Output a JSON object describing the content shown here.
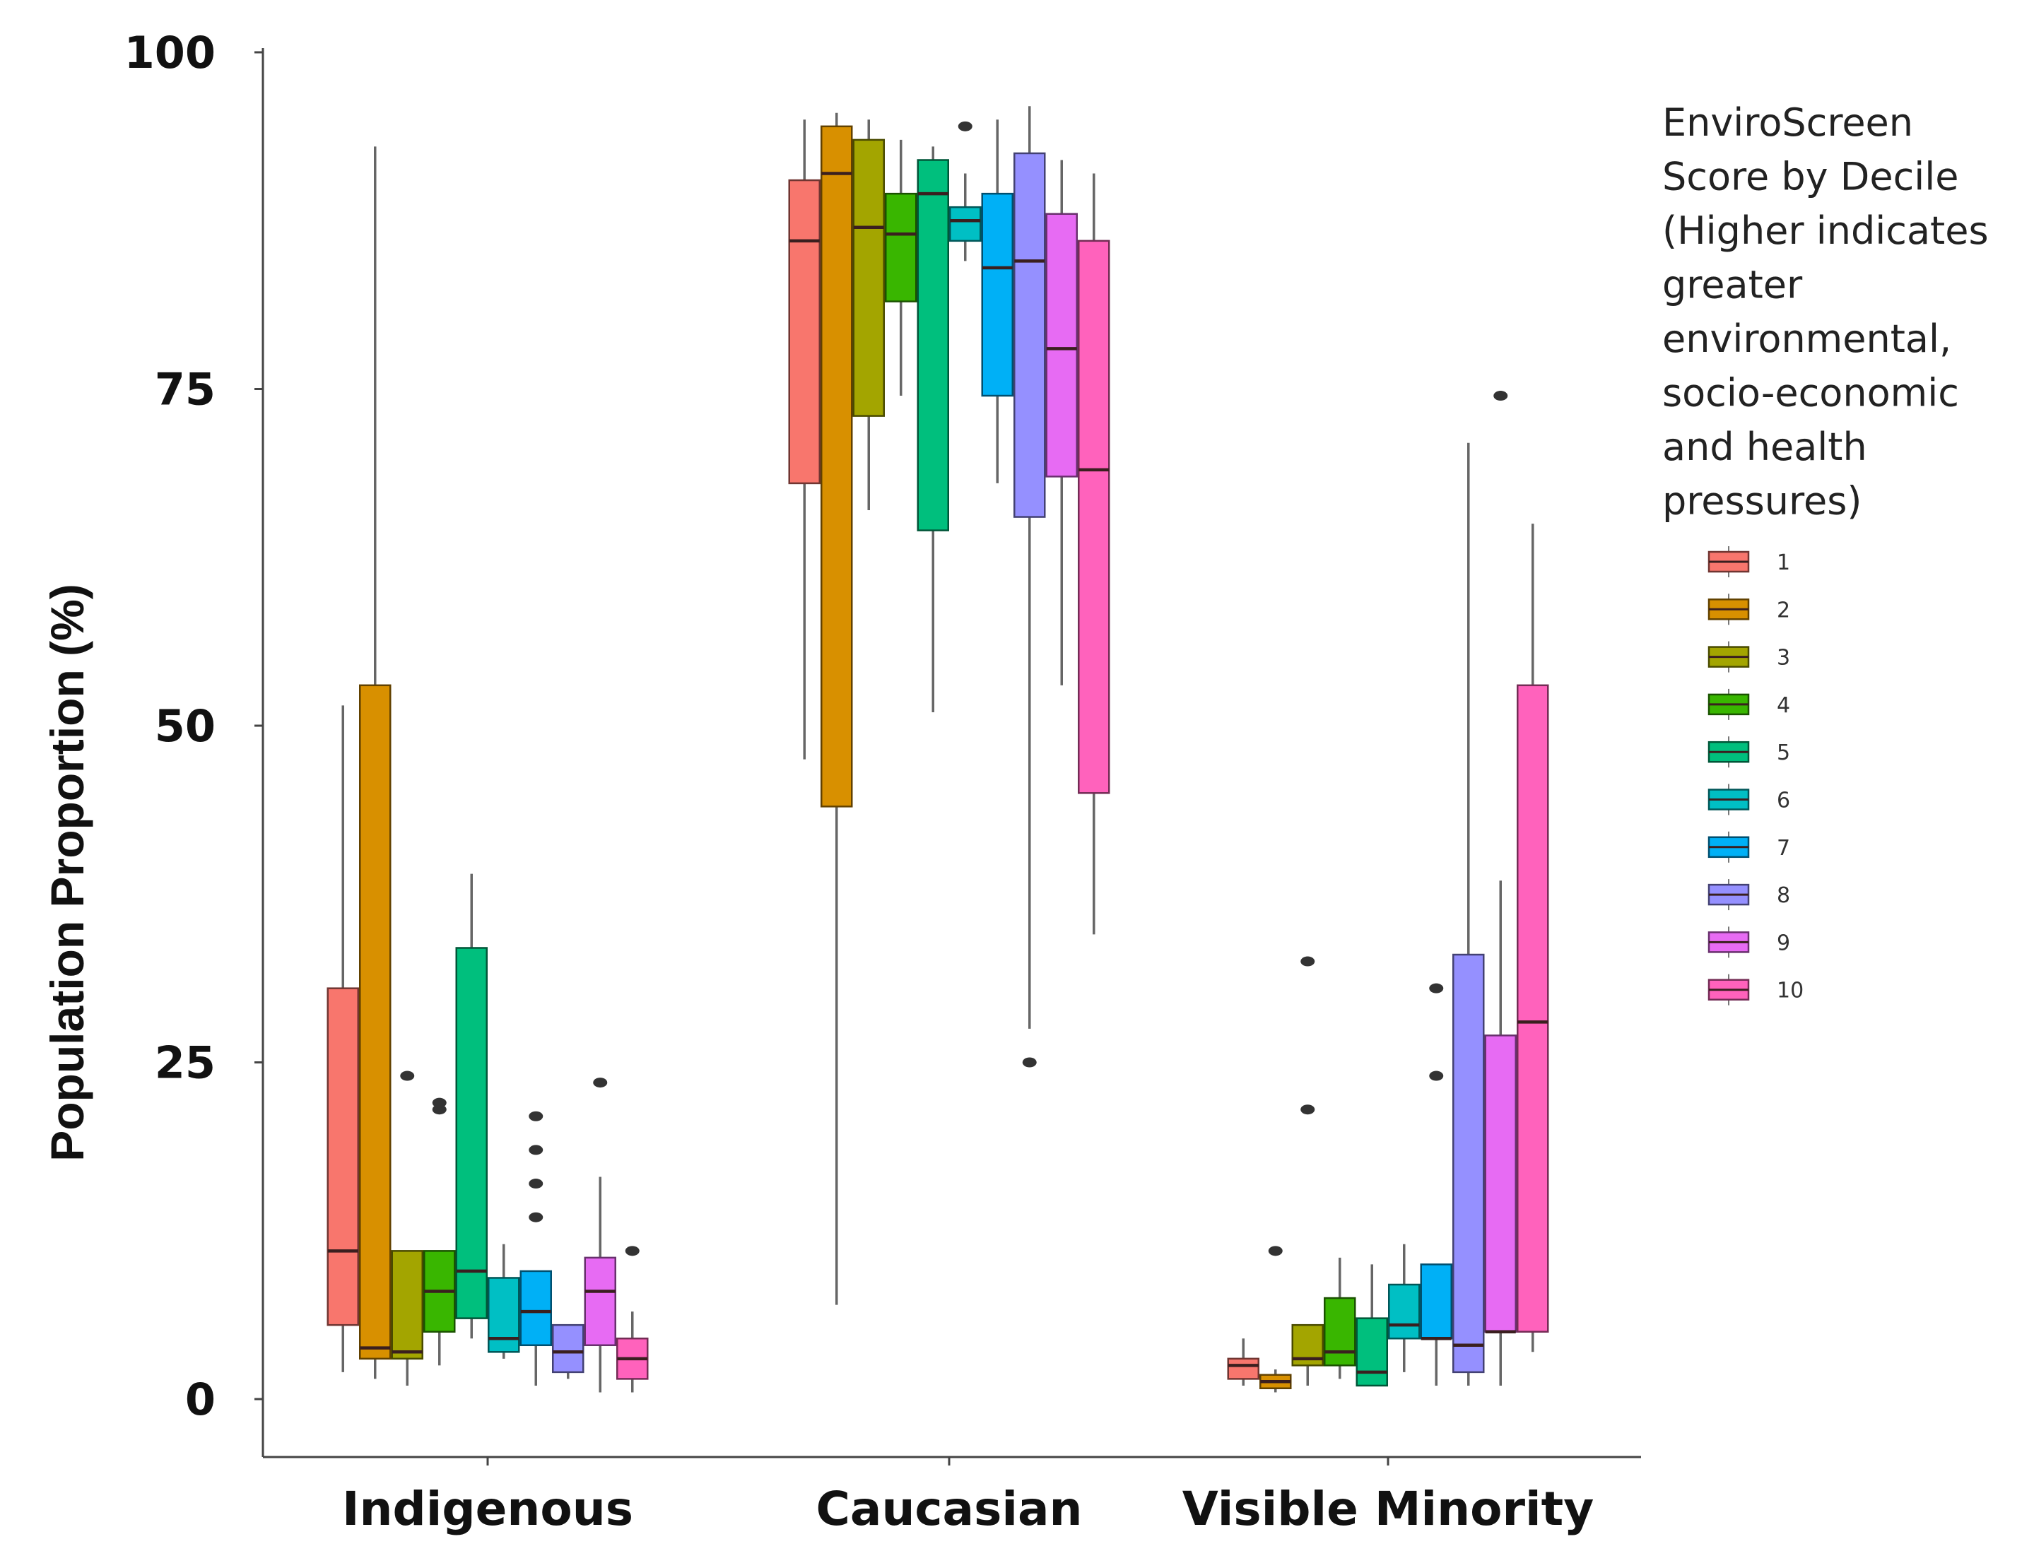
{
  "chart_data": {
    "type": "boxplot",
    "title": "",
    "xlabel": "",
    "ylabel": "Population Proportion (%)",
    "ylim": [
      0,
      100
    ],
    "yticks": [
      0,
      25,
      50,
      75,
      100
    ],
    "categories": [
      "Indigenous",
      "Caucasian",
      "Visible Minority"
    ],
    "legend": {
      "title_lines": [
        "EnviroScreen",
        "Score by Decile",
        "(Higher indicates",
        "greater",
        "environmental,",
        "socio-economic",
        "and health",
        "pressures)"
      ],
      "position": "right"
    },
    "series": [
      {
        "name": "1",
        "color": "#F8766D",
        "boxes": [
          {
            "min": 2,
            "q1": 5.5,
            "median": 11,
            "q3": 30.5,
            "max": 51.5,
            "outliers": []
          },
          {
            "min": 47.5,
            "q1": 68,
            "median": 86,
            "q3": 90.5,
            "max": 95,
            "outliers": []
          },
          {
            "min": 1,
            "q1": 1.5,
            "median": 2.5,
            "q3": 3,
            "max": 4.5,
            "outliers": []
          }
        ]
      },
      {
        "name": "2",
        "color": "#D89000",
        "boxes": [
          {
            "min": 1.5,
            "q1": 3,
            "median": 3.8,
            "q3": 53,
            "max": 93,
            "outliers": []
          },
          {
            "min": 7,
            "q1": 44,
            "median": 91,
            "q3": 94.5,
            "max": 95.5,
            "outliers": []
          },
          {
            "min": 0.5,
            "q1": 0.8,
            "median": 1.3,
            "q3": 1.8,
            "max": 2.2,
            "outliers": [
              11
            ]
          }
        ]
      },
      {
        "name": "3",
        "color": "#A3A500",
        "boxes": [
          {
            "min": 1,
            "q1": 3,
            "median": 3.5,
            "q3": 11,
            "max": 11,
            "outliers": [
              24
            ]
          },
          {
            "min": 66,
            "q1": 73,
            "median": 87,
            "q3": 93.5,
            "max": 95,
            "outliers": []
          },
          {
            "min": 1,
            "q1": 2.5,
            "median": 3,
            "q3": 5.5,
            "max": 5.5,
            "outliers": [
              21.5,
              32.5
            ]
          }
        ]
      },
      {
        "name": "4",
        "color": "#39B600",
        "boxes": [
          {
            "min": 2.5,
            "q1": 5,
            "median": 8,
            "q3": 11,
            "max": 11,
            "outliers": [
              21.5,
              22
            ]
          },
          {
            "min": 74.5,
            "q1": 81.5,
            "median": 86.5,
            "q3": 89.5,
            "max": 93.5,
            "outliers": []
          },
          {
            "min": 1.5,
            "q1": 2.5,
            "median": 3.5,
            "q3": 7.5,
            "max": 10.5,
            "outliers": []
          }
        ]
      },
      {
        "name": "5",
        "color": "#00BF7D",
        "boxes": [
          {
            "min": 4.5,
            "q1": 6,
            "median": 9.5,
            "q3": 33.5,
            "max": 39,
            "outliers": []
          },
          {
            "min": 51,
            "q1": 64.5,
            "median": 89.5,
            "q3": 92,
            "max": 93,
            "outliers": []
          },
          {
            "min": 1,
            "q1": 1,
            "median": 2,
            "q3": 6,
            "max": 10,
            "outliers": []
          }
        ]
      },
      {
        "name": "6",
        "color": "#00BFC4",
        "boxes": [
          {
            "min": 3,
            "q1": 3.5,
            "median": 4.5,
            "q3": 9,
            "max": 11.5,
            "outliers": []
          },
          {
            "min": 84.5,
            "q1": 86,
            "median": 87.5,
            "q3": 88.5,
            "max": 91,
            "outliers": [
              94.5
            ]
          },
          {
            "min": 2,
            "q1": 4.5,
            "median": 5.5,
            "q3": 8.5,
            "max": 11.5,
            "outliers": []
          }
        ]
      },
      {
        "name": "7",
        "color": "#00B0F6",
        "boxes": [
          {
            "min": 1,
            "q1": 4,
            "median": 6.5,
            "q3": 9.5,
            "max": 9.5,
            "outliers": [
              13.5,
              16,
              18.5,
              21
            ]
          },
          {
            "min": 68,
            "q1": 74.5,
            "median": 84,
            "q3": 89.5,
            "max": 95,
            "outliers": []
          },
          {
            "min": 1,
            "q1": 4.5,
            "median": 4.5,
            "q3": 10,
            "max": 10,
            "outliers": [
              24,
              30.5
            ]
          }
        ]
      },
      {
        "name": "8",
        "color": "#9590FF",
        "boxes": [
          {
            "min": 1.5,
            "q1": 2,
            "median": 3.5,
            "q3": 5.5,
            "max": 5.5,
            "outliers": []
          },
          {
            "min": 27.5,
            "q1": 65.5,
            "median": 84.5,
            "q3": 92.5,
            "max": 96,
            "outliers": [
              25
            ]
          },
          {
            "min": 1,
            "q1": 2,
            "median": 4,
            "q3": 33,
            "max": 71,
            "outliers": []
          }
        ]
      },
      {
        "name": "9",
        "color": "#E76BF3",
        "boxes": [
          {
            "min": 0.5,
            "q1": 4,
            "median": 8,
            "q3": 10.5,
            "max": 16.5,
            "outliers": [
              23.5
            ]
          },
          {
            "min": 53,
            "q1": 68.5,
            "median": 78,
            "q3": 88,
            "max": 92,
            "outliers": []
          },
          {
            "min": 1,
            "q1": 5,
            "median": 5,
            "q3": 27,
            "max": 38.5,
            "outliers": [
              74.5
            ]
          }
        ]
      },
      {
        "name": "10",
        "color": "#FF62BC",
        "boxes": [
          {
            "min": 0.5,
            "q1": 1.5,
            "median": 3,
            "q3": 4.5,
            "max": 6.5,
            "outliers": [
              11
            ]
          },
          {
            "min": 34.5,
            "q1": 45,
            "median": 69,
            "q3": 86,
            "max": 91,
            "outliers": []
          },
          {
            "min": 3.5,
            "q1": 5,
            "median": 28,
            "q3": 53,
            "max": 65,
            "outliers": []
          }
        ]
      }
    ]
  }
}
